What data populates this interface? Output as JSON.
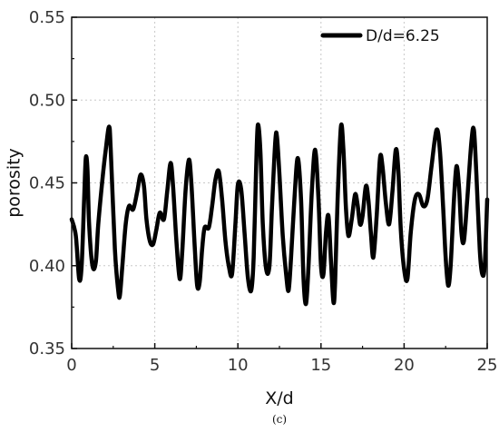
{
  "chart_data": {
    "type": "line",
    "xlabel": "X/d",
    "ylabel": "porosity",
    "xlim": [
      0,
      25
    ],
    "ylim": [
      0.35,
      0.55
    ],
    "xticks": [
      "0",
      "5",
      "10",
      "15",
      "20",
      "25"
    ],
    "yticks": [
      "0.35",
      "0.40",
      "0.45",
      "0.50",
      "0.55"
    ],
    "grid": true,
    "legend_position": "top-right",
    "caption": "(c)",
    "series": [
      {
        "name": "D/d=6.25",
        "color": "#000000",
        "points": [
          [
            0.0,
            0.428
          ],
          [
            0.25,
            0.418
          ],
          [
            0.45,
            0.392
          ],
          [
            0.6,
            0.4
          ],
          [
            0.75,
            0.44
          ],
          [
            0.85,
            0.465
          ],
          [
            0.95,
            0.458
          ],
          [
            1.05,
            0.425
          ],
          [
            1.25,
            0.4
          ],
          [
            1.45,
            0.402
          ],
          [
            1.6,
            0.425
          ],
          [
            1.85,
            0.452
          ],
          [
            2.05,
            0.47
          ],
          [
            2.25,
            0.484
          ],
          [
            2.35,
            0.47
          ],
          [
            2.6,
            0.41
          ],
          [
            2.8,
            0.385
          ],
          [
            2.9,
            0.382
          ],
          [
            3.05,
            0.4
          ],
          [
            3.25,
            0.425
          ],
          [
            3.45,
            0.436
          ],
          [
            3.7,
            0.434
          ],
          [
            3.95,
            0.445
          ],
          [
            4.15,
            0.455
          ],
          [
            4.35,
            0.448
          ],
          [
            4.5,
            0.428
          ],
          [
            4.7,
            0.415
          ],
          [
            4.9,
            0.413
          ],
          [
            5.1,
            0.422
          ],
          [
            5.3,
            0.432
          ],
          [
            5.55,
            0.428
          ],
          [
            5.75,
            0.445
          ],
          [
            5.95,
            0.462
          ],
          [
            6.1,
            0.448
          ],
          [
            6.3,
            0.415
          ],
          [
            6.5,
            0.392
          ],
          [
            6.65,
            0.408
          ],
          [
            6.85,
            0.445
          ],
          [
            7.05,
            0.464
          ],
          [
            7.2,
            0.45
          ],
          [
            7.4,
            0.412
          ],
          [
            7.55,
            0.388
          ],
          [
            7.7,
            0.39
          ],
          [
            7.85,
            0.41
          ],
          [
            8.0,
            0.423
          ],
          [
            8.25,
            0.423
          ],
          [
            8.45,
            0.436
          ],
          [
            8.65,
            0.452
          ],
          [
            8.85,
            0.457
          ],
          [
            9.05,
            0.44
          ],
          [
            9.25,
            0.415
          ],
          [
            9.45,
            0.4
          ],
          [
            9.65,
            0.395
          ],
          [
            9.85,
            0.425
          ],
          [
            10.0,
            0.449
          ],
          [
            10.2,
            0.446
          ],
          [
            10.4,
            0.42
          ],
          [
            10.6,
            0.393
          ],
          [
            10.8,
            0.385
          ],
          [
            10.95,
            0.405
          ],
          [
            11.1,
            0.46
          ],
          [
            11.2,
            0.485
          ],
          [
            11.35,
            0.47
          ],
          [
            11.5,
            0.425
          ],
          [
            11.7,
            0.398
          ],
          [
            11.9,
            0.4
          ],
          [
            12.05,
            0.435
          ],
          [
            12.25,
            0.475
          ],
          [
            12.35,
            0.478
          ],
          [
            12.5,
            0.455
          ],
          [
            12.7,
            0.418
          ],
          [
            12.9,
            0.395
          ],
          [
            13.05,
            0.385
          ],
          [
            13.2,
            0.405
          ],
          [
            13.4,
            0.44
          ],
          [
            13.6,
            0.465
          ],
          [
            13.8,
            0.44
          ],
          [
            13.95,
            0.392
          ],
          [
            14.1,
            0.377
          ],
          [
            14.25,
            0.4
          ],
          [
            14.45,
            0.445
          ],
          [
            14.65,
            0.47
          ],
          [
            14.85,
            0.44
          ],
          [
            15.0,
            0.4
          ],
          [
            15.15,
            0.395
          ],
          [
            15.3,
            0.42
          ],
          [
            15.45,
            0.43
          ],
          [
            15.6,
            0.403
          ],
          [
            15.75,
            0.378
          ],
          [
            15.85,
            0.39
          ],
          [
            16.0,
            0.44
          ],
          [
            16.2,
            0.484
          ],
          [
            16.35,
            0.47
          ],
          [
            16.5,
            0.435
          ],
          [
            16.65,
            0.418
          ],
          [
            16.85,
            0.428
          ],
          [
            17.05,
            0.443
          ],
          [
            17.2,
            0.437
          ],
          [
            17.35,
            0.425
          ],
          [
            17.5,
            0.43
          ],
          [
            17.7,
            0.448
          ],
          [
            17.85,
            0.44
          ],
          [
            18.0,
            0.42
          ],
          [
            18.15,
            0.405
          ],
          [
            18.35,
            0.43
          ],
          [
            18.55,
            0.465
          ],
          [
            18.7,
            0.46
          ],
          [
            18.9,
            0.438
          ],
          [
            19.1,
            0.425
          ],
          [
            19.3,
            0.445
          ],
          [
            19.5,
            0.47
          ],
          [
            19.65,
            0.458
          ],
          [
            19.8,
            0.422
          ],
          [
            20.0,
            0.398
          ],
          [
            20.2,
            0.392
          ],
          [
            20.4,
            0.42
          ],
          [
            20.65,
            0.44
          ],
          [
            20.9,
            0.443
          ],
          [
            21.15,
            0.436
          ],
          [
            21.4,
            0.44
          ],
          [
            21.65,
            0.46
          ],
          [
            21.95,
            0.482
          ],
          [
            22.15,
            0.47
          ],
          [
            22.35,
            0.435
          ],
          [
            22.5,
            0.405
          ],
          [
            22.65,
            0.388
          ],
          [
            22.8,
            0.4
          ],
          [
            23.0,
            0.44
          ],
          [
            23.15,
            0.46
          ],
          [
            23.3,
            0.448
          ],
          [
            23.45,
            0.42
          ],
          [
            23.6,
            0.415
          ],
          [
            23.8,
            0.44
          ],
          [
            24.05,
            0.475
          ],
          [
            24.2,
            0.482
          ],
          [
            24.35,
            0.455
          ],
          [
            24.55,
            0.41
          ],
          [
            24.7,
            0.395
          ],
          [
            24.85,
            0.4
          ],
          [
            25.0,
            0.44
          ]
        ]
      }
    ]
  }
}
